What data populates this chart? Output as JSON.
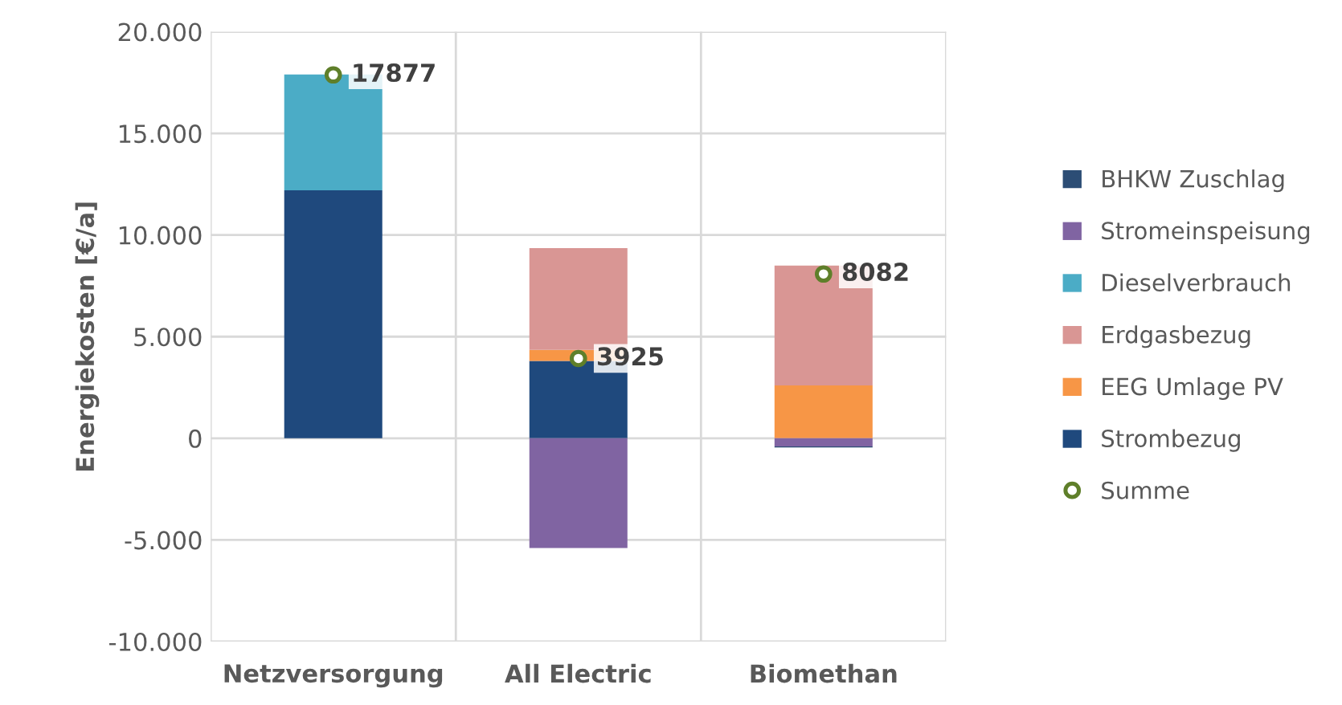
{
  "chart_data": {
    "type": "bar",
    "stacked": true,
    "ylabel": "Energiekosten [€/a]",
    "categories": [
      "Netzversorgung",
      "All Electric",
      "Biomethan"
    ],
    "series": [
      {
        "name": "Strombezug",
        "color": "#1f497d",
        "values": [
          12200,
          3800,
          null
        ]
      },
      {
        "name": "EEG Umlage PV",
        "color": "#f79646",
        "values": [
          null,
          550,
          2600
        ]
      },
      {
        "name": "Erdgasbezug",
        "color": "#d99694",
        "values": [
          null,
          5000,
          5900
        ]
      },
      {
        "name": "Dieselverbrauch",
        "color": "#4bacc6",
        "values": [
          5700,
          null,
          null
        ]
      },
      {
        "name": "Stromeinspeisung",
        "color": "#8064a2",
        "values": [
          null,
          -5400,
          -400
        ]
      },
      {
        "name": "BHKW Zuschlag",
        "color": "#2c4d75",
        "values": [
          null,
          null,
          -50
        ]
      },
      {
        "name": "Summe",
        "type": "scatter",
        "color": "#5f7f2a",
        "marker": "circle",
        "x": [
          "Netzversorgung",
          "All Electric",
          "Biomethan"
        ],
        "values": [
          17877,
          3925,
          8082
        ],
        "value_labels": [
          "17877",
          "3925",
          "8082"
        ]
      }
    ],
    "ylim": [
      -10000,
      20000
    ],
    "yticks": [
      {
        "value": -10000,
        "label": "-10.000"
      },
      {
        "value": -5000,
        "label": "-5.000"
      },
      {
        "value": 0,
        "label": "0"
      },
      {
        "value": 5000,
        "label": "5.000"
      },
      {
        "value": 10000,
        "label": "10.000"
      },
      {
        "value": 15000,
        "label": "15.000"
      },
      {
        "value": 20000,
        "label": "20.000"
      }
    ],
    "grid": true,
    "legend": "right"
  }
}
